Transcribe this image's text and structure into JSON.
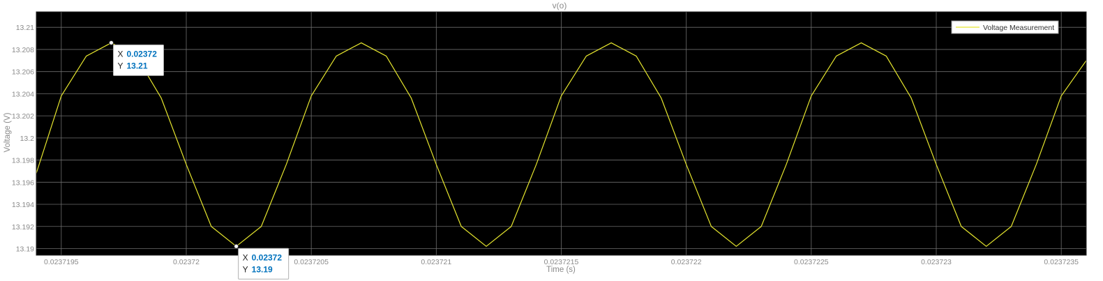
{
  "chart_data": {
    "type": "line",
    "title": "v(o)",
    "xlabel": "Time (s)",
    "ylabel": "Voltage (V)",
    "xlim": [
      0.0237194,
      0.0237236
    ],
    "ylim": [
      13.1894,
      13.2114
    ],
    "x_ticks": [
      0.0237195,
      0.02372,
      0.0237205,
      0.023721,
      0.0237215,
      0.023722,
      0.0237225,
      0.023723,
      0.0237235
    ],
    "x_tick_labels": [
      "0.0237195",
      "0.02372",
      "0.0237205",
      "0.023721",
      "0.0237215",
      "0.023722",
      "0.0237225",
      "0.023723",
      "0.0237235"
    ],
    "y_ticks": [
      13.19,
      13.192,
      13.194,
      13.196,
      13.198,
      13.2,
      13.202,
      13.204,
      13.206,
      13.208,
      13.21
    ],
    "y_tick_labels": [
      "13.19",
      "13.192",
      "13.194",
      "13.196",
      "13.198",
      "13.2",
      "13.202",
      "13.204",
      "13.206",
      "13.208",
      "13.21"
    ],
    "grid": true,
    "legend_position": "top-right",
    "colors": {
      "background": "#000000",
      "grid": "#6e6e6e",
      "series": "#e6e62e"
    },
    "series": [
      {
        "name": "Voltage Measurement",
        "x": [
          0.0237194,
          0.0237195,
          0.0237196,
          0.0237197,
          0.0237198,
          0.0237199,
          0.02372,
          0.0237201,
          0.0237202,
          0.0237203,
          0.0237204,
          0.0237205,
          0.0237206,
          0.0237207,
          0.0237208,
          0.0237209,
          0.023721,
          0.0237211,
          0.0237212,
          0.0237213,
          0.0237214,
          0.0237215,
          0.0237216,
          0.0237217,
          0.0237218,
          0.0237219,
          0.023722,
          0.0237221,
          0.0237222,
          0.0237223,
          0.0237224,
          0.0237225,
          0.0237226,
          0.0237227,
          0.0237228,
          0.0237229,
          0.023723,
          0.0237231,
          0.0237232,
          0.0237233,
          0.0237234,
          0.0237235,
          0.0237236
        ],
        "y": [
          13.1968,
          13.2038,
          13.2074,
          13.2086,
          13.2074,
          13.2036,
          13.1976,
          13.192,
          13.1902,
          13.192,
          13.1976,
          13.2038,
          13.2074,
          13.2086,
          13.2074,
          13.2036,
          13.1976,
          13.192,
          13.1902,
          13.192,
          13.1976,
          13.2038,
          13.2074,
          13.2086,
          13.2074,
          13.2036,
          13.1976,
          13.192,
          13.1902,
          13.192,
          13.1976,
          13.2038,
          13.2074,
          13.2086,
          13.2074,
          13.2036,
          13.1976,
          13.192,
          13.1902,
          13.192,
          13.1976,
          13.2038,
          13.207
        ]
      }
    ],
    "datatips": [
      {
        "x": 0.0237197,
        "y": 13.2086,
        "x_label": "X",
        "y_label": "Y",
        "x_text": "0.02372",
        "y_text": "13.21"
      },
      {
        "x": 0.0237202,
        "y": 13.1902,
        "x_label": "X",
        "y_label": "Y",
        "x_text": "0.02372",
        "y_text": "13.19"
      }
    ]
  }
}
